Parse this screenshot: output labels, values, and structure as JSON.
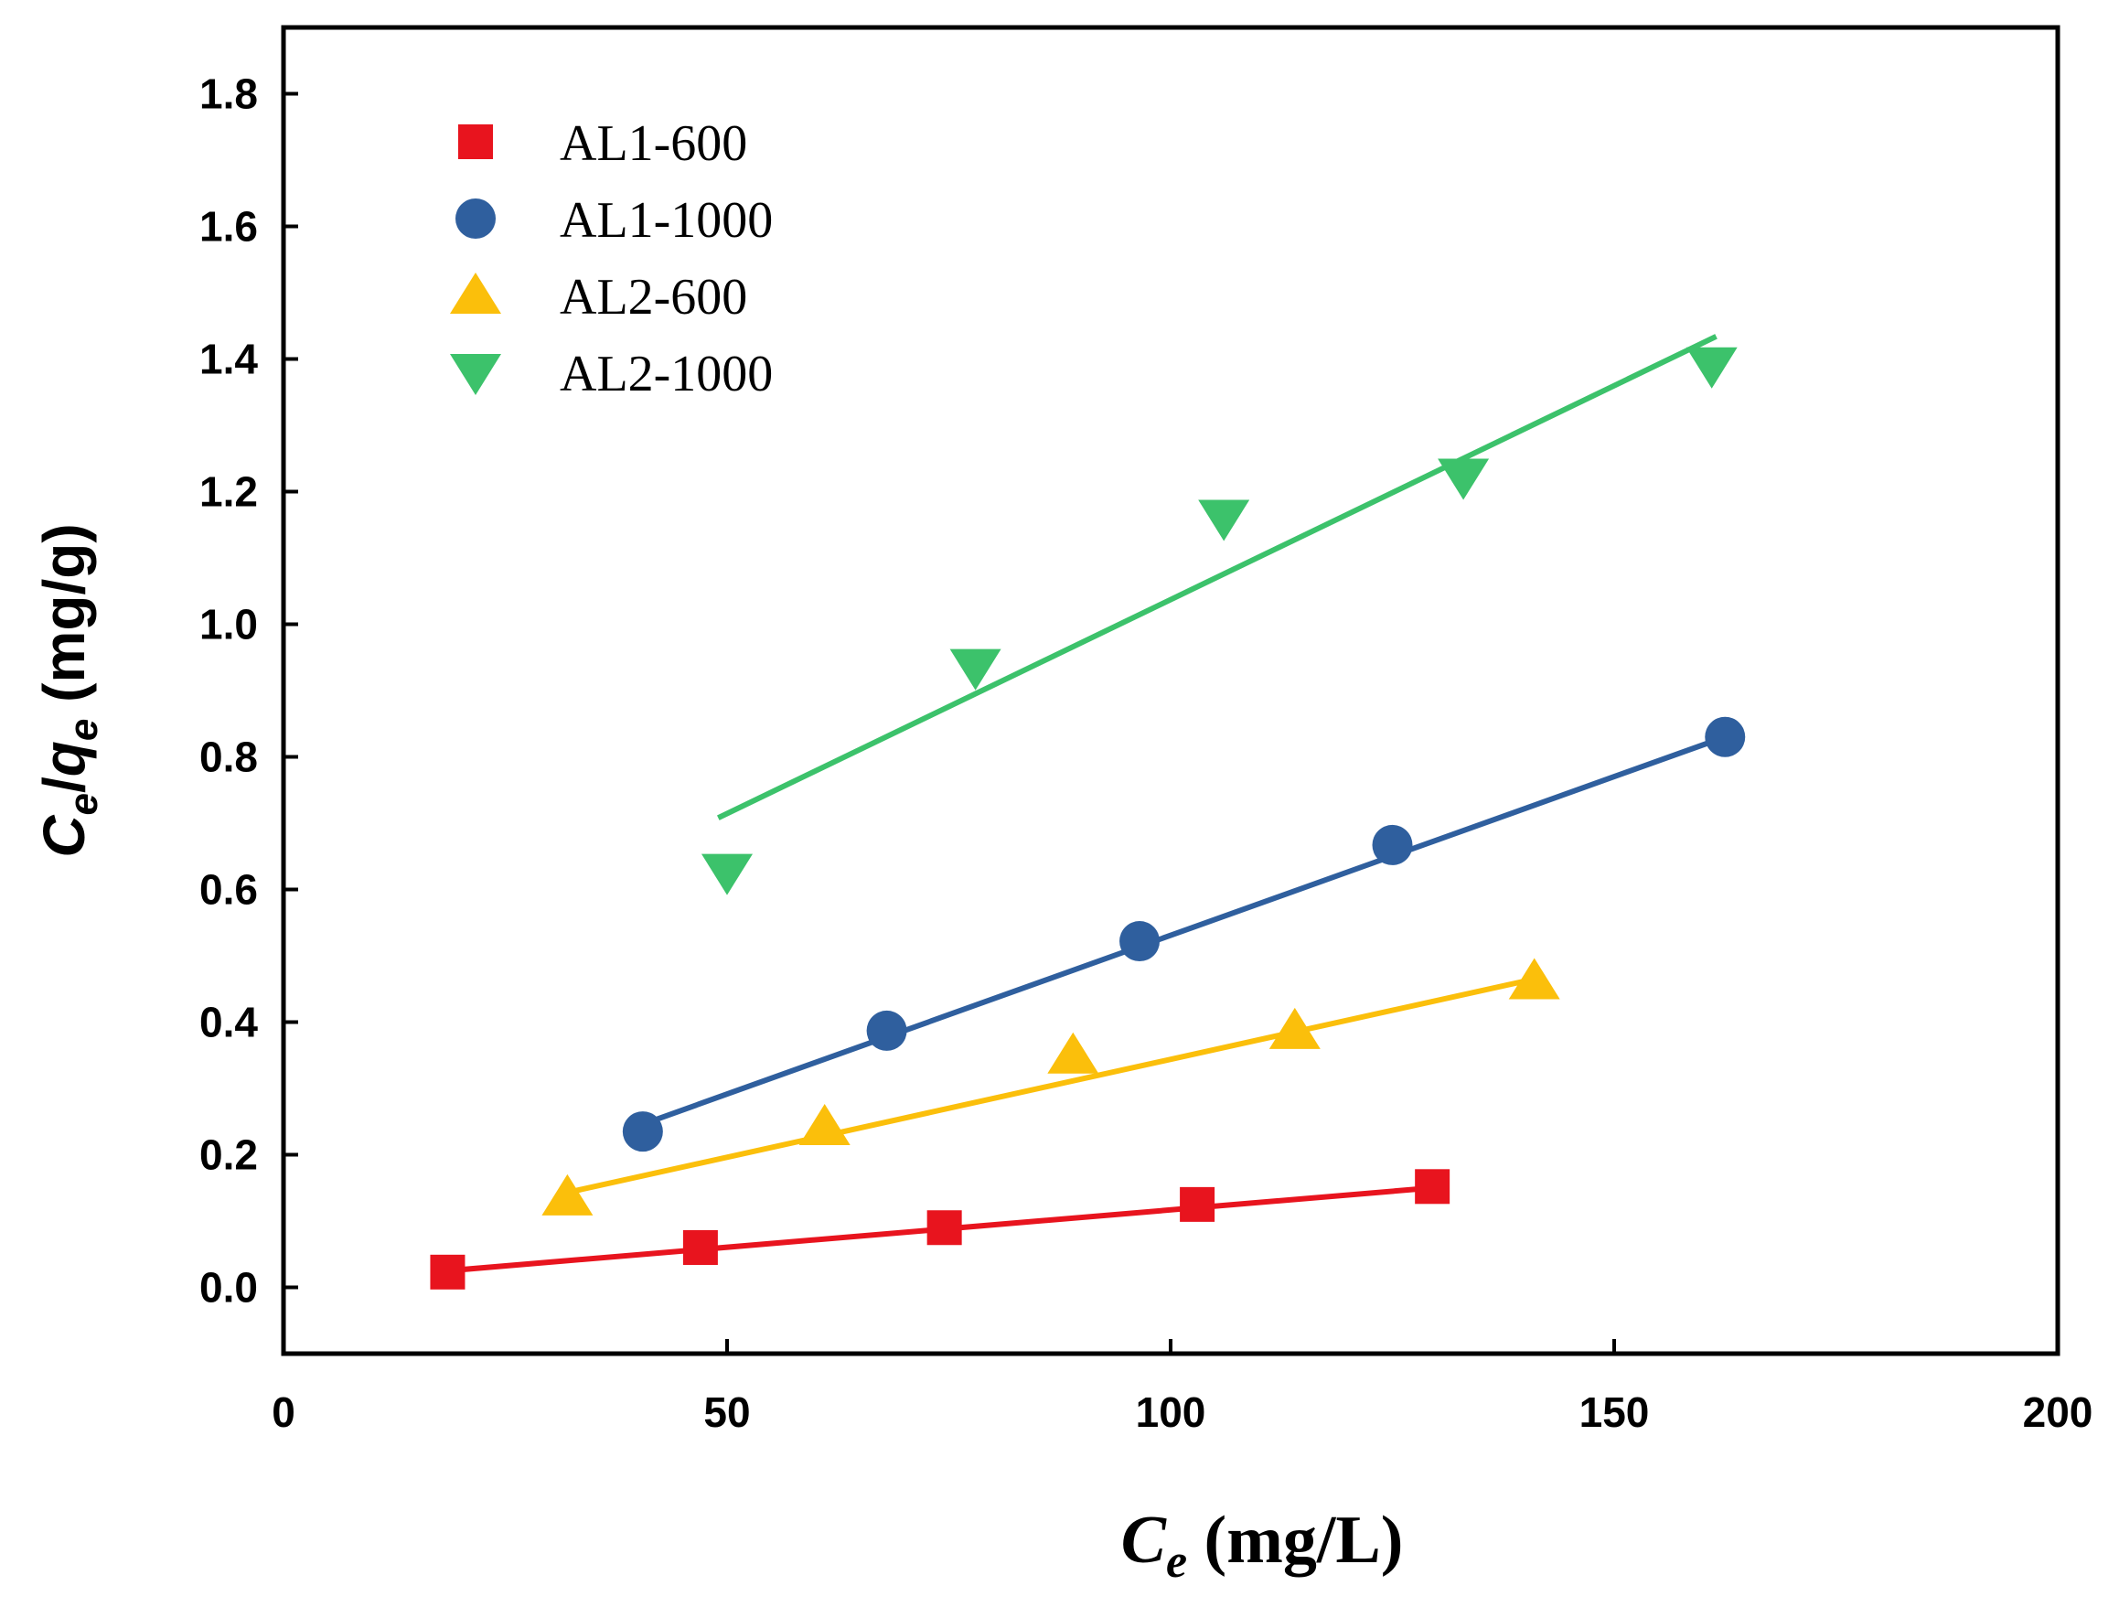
{
  "chart_data": {
    "type": "scatter",
    "title": "",
    "xlabel": {
      "main": "C",
      "sub": "e",
      "unit": " (mg/L)"
    },
    "ylabel": {
      "c": "C",
      "c_sub": "e",
      "slash": "/",
      "q": "q",
      "q_sub": "e",
      "unit": " (mg/g)"
    },
    "xlim": [
      0,
      200
    ],
    "ylim": [
      -0.1,
      1.9
    ],
    "x_ticks": [
      0,
      50,
      100,
      150,
      200
    ],
    "x_tick_labels": [
      "0",
      "50",
      "100",
      "150",
      "200"
    ],
    "y_ticks": [
      0.0,
      0.2,
      0.4,
      0.6,
      0.8,
      1.0,
      1.2,
      1.4,
      1.6,
      1.8
    ],
    "y_tick_labels": [
      "0.0",
      "0.2",
      "0.4",
      "0.6",
      "0.8",
      "1.0",
      "1.2",
      "1.4",
      "1.6",
      "1.8"
    ],
    "grid": false,
    "legend_position": "top-left",
    "series": [
      {
        "name": "AL1-600",
        "marker": "square",
        "color": "#e8141e",
        "x": [
          18.5,
          47,
          74.5,
          103,
          129.5
        ],
        "y": [
          0.023,
          0.06,
          0.09,
          0.125,
          0.152
        ],
        "fit": {
          "x": [
            18.5,
            129.5
          ],
          "y": [
            0.025,
            0.15
          ]
        }
      },
      {
        "name": "AL1-1000",
        "marker": "circle",
        "color": "#2f5f9e",
        "x": [
          40.5,
          68,
          96.5,
          125,
          162.5
        ],
        "y": [
          0.235,
          0.387,
          0.522,
          0.667,
          0.83
        ],
        "fit": {
          "x": [
            40.5,
            162.5
          ],
          "y": [
            0.246,
            0.83
          ]
        }
      },
      {
        "name": "AL2-600",
        "marker": "triangle-up",
        "color": "#fbbf0b",
        "x": [
          32,
          61,
          89,
          114,
          141
        ],
        "y": [
          0.136,
          0.242,
          0.35,
          0.387,
          0.462
        ],
        "fit": {
          "x": [
            32,
            141
          ],
          "y": [
            0.143,
            0.465
          ]
        }
      },
      {
        "name": "AL2-1000",
        "marker": "triangle-down",
        "color": "#3cc26b",
        "x": [
          50,
          78,
          106,
          133,
          161
        ],
        "y": [
          0.626,
          0.935,
          1.16,
          1.222,
          1.39
        ],
        "fit": {
          "x": [
            49,
            161.5
          ],
          "y": [
            0.708,
            1.434
          ]
        }
      }
    ]
  }
}
